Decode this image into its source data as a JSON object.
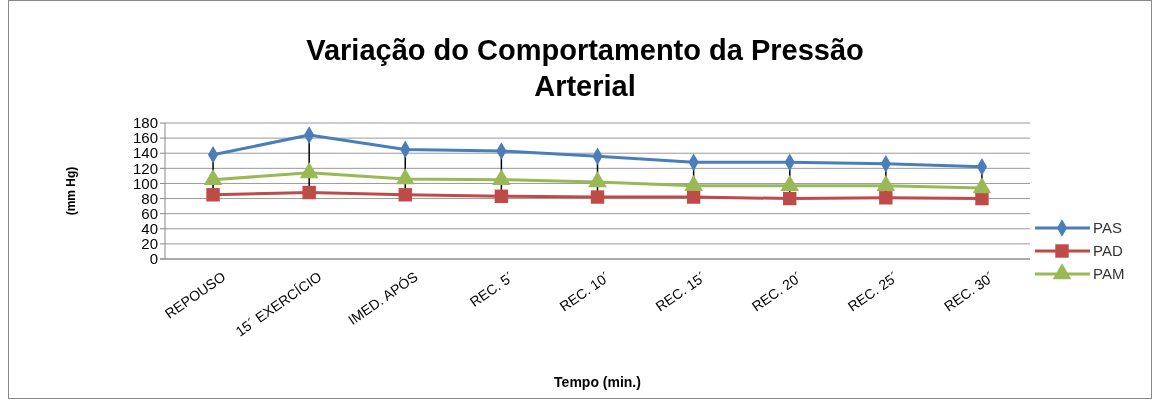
{
  "chart_data": {
    "type": "line",
    "title": "Variação do Comportamento da Pressão Arterial",
    "xlabel": "Tempo (min.)",
    "ylabel": "(mm Hg)",
    "categories": [
      "REPOUSO",
      "15´ EXERCÍCIO",
      "IMED. APÓS",
      "REC. 5´",
      "REC. 10´",
      "REC. 15´",
      "REC. 20´",
      "REC. 25´",
      "REC. 30´"
    ],
    "series": [
      {
        "name": "PAS",
        "color": "#4a7ebb",
        "marker": "diamond",
        "values": [
          138,
          164,
          145,
          143,
          136,
          128,
          128,
          126,
          122
        ]
      },
      {
        "name": "PAD",
        "color": "#be4b48",
        "marker": "square",
        "values": [
          85,
          88,
          85,
          83,
          82,
          82,
          80,
          81,
          80
        ]
      },
      {
        "name": "PAM",
        "color": "#98b954",
        "marker": "triangle",
        "values": [
          105,
          114,
          106,
          105,
          102,
          97,
          97,
          97,
          94
        ]
      }
    ],
    "ylim": [
      0,
      180
    ],
    "yticks": [
      0,
      20,
      40,
      60,
      80,
      100,
      120,
      140,
      160,
      180
    ],
    "grid": "y",
    "legend": "right"
  }
}
